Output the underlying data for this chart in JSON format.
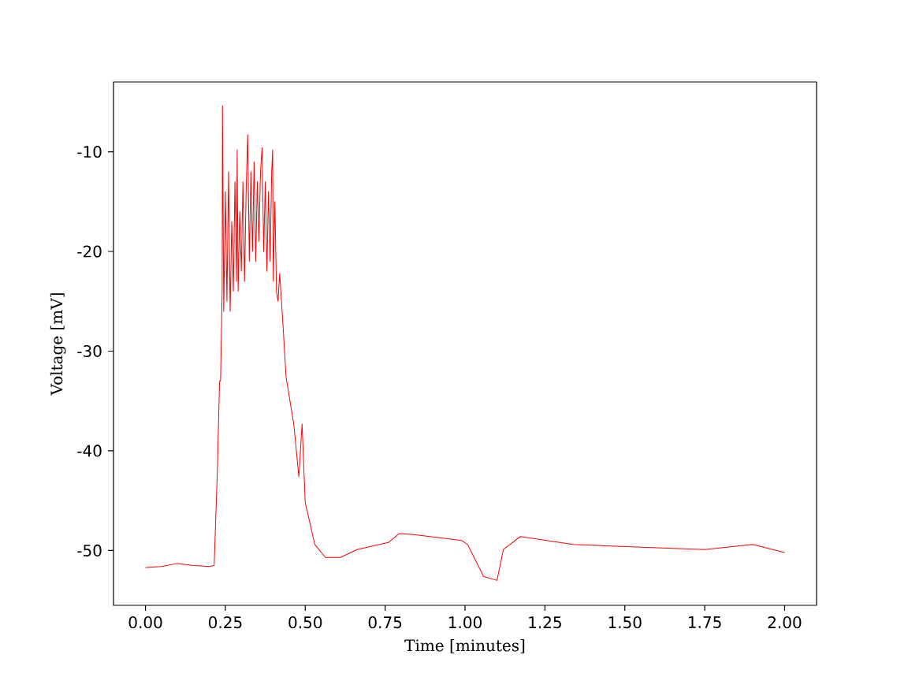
{
  "chart_data": {
    "type": "line",
    "xlabel": "Time [minutes]",
    "ylabel": "Voltage [mV]",
    "xlim": [
      -0.1,
      2.1
    ],
    "ylim": [
      -55.5,
      -3
    ],
    "xticks": [
      {
        "value": 0,
        "label": "0.00"
      },
      {
        "value": 0.25,
        "label": "0.25"
      },
      {
        "value": 0.5,
        "label": "0.50"
      },
      {
        "value": 0.75,
        "label": "0.75"
      },
      {
        "value": 1,
        "label": "1.00"
      },
      {
        "value": 1.25,
        "label": "1.25"
      },
      {
        "value": 1.5,
        "label": "1.50"
      },
      {
        "value": 1.75,
        "label": "1.75"
      },
      {
        "value": 2,
        "label": "2.00"
      }
    ],
    "yticks": [
      -50,
      -40,
      -30,
      -20,
      -10
    ],
    "grid": false,
    "marker": "none",
    "line_style": "solid",
    "series": [
      {
        "color": "#ff0000",
        "x": [
          0.0,
          0.05,
          0.1,
          0.15,
          0.2,
          0.215,
          0.225,
          0.232,
          0.235,
          0.24,
          0.241,
          0.245,
          0.25,
          0.255,
          0.26,
          0.265,
          0.27,
          0.275,
          0.28,
          0.285,
          0.287,
          0.29,
          0.295,
          0.3,
          0.305,
          0.31,
          0.315,
          0.32,
          0.325,
          0.33,
          0.335,
          0.34,
          0.345,
          0.35,
          0.355,
          0.36,
          0.365,
          0.37,
          0.375,
          0.38,
          0.385,
          0.39,
          0.395,
          0.398,
          0.4,
          0.405,
          0.41,
          0.415,
          0.42,
          0.43,
          0.44,
          0.464,
          0.48,
          0.49,
          0.5,
          0.53,
          0.563,
          0.61,
          0.662,
          0.76,
          0.794,
          0.84,
          0.99,
          1.008,
          1.058,
          1.1,
          1.12,
          1.173,
          1.338,
          1.503,
          1.75,
          1.9,
          2.0
        ],
        "values": [
          -51.7,
          -51.6,
          -51.3,
          -51.5,
          -51.6,
          -51.5,
          -42,
          -33,
          -33,
          -24,
          -5.4,
          -26,
          -14,
          -25,
          -12,
          -26,
          -17,
          -24,
          -13,
          -23,
          -9.8,
          -24,
          -16,
          -22,
          -13,
          -23,
          -14,
          -8.3,
          -21,
          -12,
          -20,
          -11,
          -21,
          -13,
          -19,
          -12,
          -9.6,
          -20,
          -13,
          -22,
          -14,
          -21,
          -12,
          -9.8,
          -23,
          -15,
          -24,
          -25,
          -22.2,
          -27.2,
          -32.6,
          -37.3,
          -42.6,
          -37.3,
          -45.2,
          -49.4,
          -50.7,
          -50.7,
          -49.9,
          -49.2,
          -48.3,
          -48.4,
          -49.0,
          -49.4,
          -52.6,
          -53.0,
          -49.9,
          -48.6,
          -49.4,
          -49.6,
          -49.9,
          -49.4,
          -50.2
        ]
      }
    ]
  }
}
